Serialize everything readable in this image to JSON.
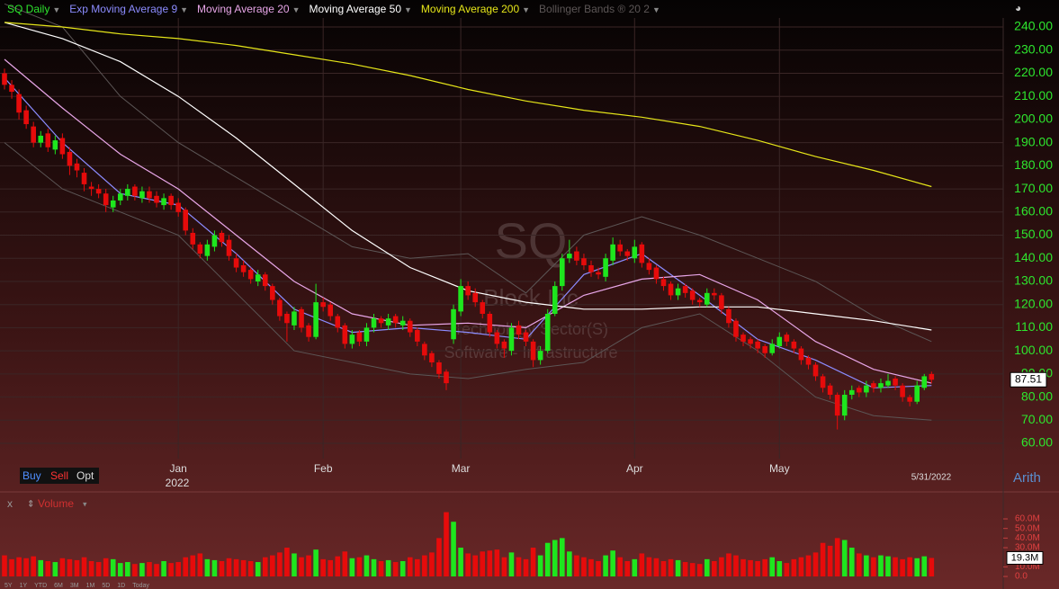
{
  "chart_data": {
    "type": "candlestick",
    "title": "SQ Daily",
    "up_color": "#1ee61e",
    "down_color": "#e60b0b",
    "xlim": [
      -0.62,
      137.9
    ],
    "ylim": [
      53.4,
      243.9
    ],
    "yticks": [
      {
        "value": 240,
        "label": "240.00"
      },
      {
        "value": 230,
        "label": "230.00"
      },
      {
        "value": 220,
        "label": "220.00"
      },
      {
        "value": 210,
        "label": "210.00"
      },
      {
        "value": 200,
        "label": "200.00"
      },
      {
        "value": 190,
        "label": "190.00"
      },
      {
        "value": 180,
        "label": "180.00"
      },
      {
        "value": 170,
        "label": "170.00"
      },
      {
        "value": 160,
        "label": "160.00"
      },
      {
        "value": 150,
        "label": "150.00"
      },
      {
        "value": 140,
        "label": "140.00"
      },
      {
        "value": 130,
        "label": "130.00"
      },
      {
        "value": 120,
        "label": "120.00"
      },
      {
        "value": 110,
        "label": "110.00"
      },
      {
        "value": 100,
        "label": "100.00"
      },
      {
        "value": 90,
        "label": "90.00"
      },
      {
        "value": 80,
        "label": "80.00"
      },
      {
        "value": 70,
        "label": "70.00"
      },
      {
        "value": 60,
        "label": "60.00"
      }
    ],
    "grid": true,
    "x_labels": [
      {
        "index": 24,
        "label": "Jan"
      },
      {
        "index": 44,
        "label": "Feb"
      },
      {
        "index": 63,
        "label": "Mar"
      },
      {
        "index": 87,
        "label": "Apr"
      },
      {
        "index": 107,
        "label": "May"
      }
    ],
    "year_label": "2022",
    "end_date_label": "5/31/2022",
    "candles": [
      [
        220,
        222,
        213,
        215
      ],
      [
        215,
        217,
        209,
        212
      ],
      [
        211,
        213,
        200,
        203
      ],
      [
        204,
        206,
        196,
        198
      ],
      [
        197,
        199,
        188,
        190
      ],
      [
        190,
        195,
        188,
        193
      ],
      [
        194,
        196,
        186,
        188
      ],
      [
        187,
        193,
        185,
        191
      ],
      [
        192,
        194,
        183,
        185
      ],
      [
        186,
        188,
        176,
        180
      ],
      [
        181,
        183,
        175,
        178
      ],
      [
        177,
        179,
        169,
        172
      ],
      [
        171,
        173,
        167,
        170
      ],
      [
        170,
        172,
        166,
        168
      ],
      [
        168,
        170,
        160,
        163
      ],
      [
        162,
        167,
        160,
        165
      ],
      [
        165,
        170,
        163,
        168
      ],
      [
        167,
        172,
        165,
        170
      ],
      [
        171,
        172,
        165,
        167
      ],
      [
        166,
        171,
        164,
        169
      ],
      [
        169,
        171,
        164,
        166
      ],
      [
        167,
        169,
        162,
        164
      ],
      [
        163,
        168,
        161,
        166
      ],
      [
        167,
        168,
        161,
        163
      ],
      [
        164,
        166,
        158,
        160
      ],
      [
        161,
        162,
        150,
        152
      ],
      [
        151,
        153,
        144,
        146
      ],
      [
        146,
        147,
        140,
        142
      ],
      [
        141,
        148,
        139,
        146
      ],
      [
        145,
        152,
        143,
        150
      ],
      [
        151,
        152,
        145,
        147
      ],
      [
        148,
        150,
        139,
        141
      ],
      [
        140,
        142,
        134,
        136
      ],
      [
        137,
        139,
        132,
        134
      ],
      [
        135,
        136,
        129,
        131
      ],
      [
        130,
        135,
        128,
        133
      ],
      [
        133,
        134,
        126,
        128
      ],
      [
        128,
        129,
        120,
        122
      ],
      [
        122,
        123,
        113,
        115
      ],
      [
        116,
        117,
        104,
        112
      ],
      [
        111,
        119,
        109,
        117
      ],
      [
        118,
        119,
        108,
        110
      ],
      [
        111,
        112,
        104,
        106
      ],
      [
        106,
        129,
        105,
        121
      ],
      [
        121,
        123,
        117,
        119
      ],
      [
        120,
        121,
        113,
        115
      ],
      [
        115,
        116,
        108,
        110
      ],
      [
        111,
        112,
        101,
        103
      ],
      [
        103,
        109,
        101,
        107
      ],
      [
        108,
        109,
        102,
        104
      ],
      [
        104,
        112,
        102,
        110
      ],
      [
        110,
        116,
        108,
        114
      ],
      [
        114,
        115,
        110,
        112
      ],
      [
        111,
        116,
        109,
        114
      ],
      [
        115,
        116,
        110,
        112
      ],
      [
        111,
        115,
        109,
        113
      ],
      [
        113,
        114,
        106,
        108
      ],
      [
        109,
        110,
        102,
        104
      ],
      [
        103,
        104,
        96,
        98
      ],
      [
        99,
        100,
        93,
        95
      ],
      [
        95,
        96,
        88,
        90
      ],
      [
        91,
        92,
        83,
        86
      ],
      [
        105,
        120,
        103,
        118
      ],
      [
        117,
        131,
        115,
        128
      ],
      [
        128,
        130,
        122,
        124
      ],
      [
        125,
        127,
        119,
        121
      ],
      [
        121,
        122,
        114,
        116
      ],
      [
        116,
        117,
        106,
        108
      ],
      [
        108,
        109,
        101,
        103
      ],
      [
        104,
        105,
        97,
        101
      ],
      [
        100,
        112,
        98,
        110
      ],
      [
        111,
        113,
        105,
        107
      ],
      [
        108,
        109,
        102,
        104
      ],
      [
        104,
        105,
        93,
        96
      ],
      [
        96,
        102,
        94,
        100
      ],
      [
        100,
        118,
        99,
        116
      ],
      [
        116,
        130,
        115,
        128
      ],
      [
        128,
        142,
        126,
        140
      ],
      [
        140,
        148,
        138,
        142
      ],
      [
        143,
        145,
        137,
        139
      ],
      [
        140,
        142,
        135,
        137
      ],
      [
        137,
        139,
        132,
        134
      ],
      [
        134,
        136,
        131,
        133
      ],
      [
        132,
        142,
        130,
        140
      ],
      [
        139,
        149,
        137,
        146
      ],
      [
        146,
        148,
        141,
        143
      ],
      [
        143,
        144,
        139,
        141
      ],
      [
        140,
        148,
        138,
        145
      ],
      [
        146,
        147,
        136,
        138
      ],
      [
        138,
        140,
        133,
        135
      ],
      [
        136,
        137,
        129,
        131
      ],
      [
        131,
        132,
        126,
        128
      ],
      [
        129,
        130,
        122,
        124
      ],
      [
        124,
        129,
        122,
        127
      ],
      [
        128,
        129,
        123,
        125
      ],
      [
        126,
        127,
        120,
        122
      ],
      [
        122,
        123,
        119,
        121
      ],
      [
        120,
        127,
        119,
        125
      ],
      [
        125,
        127,
        122,
        124
      ],
      [
        124,
        125,
        116,
        118
      ],
      [
        118,
        119,
        110,
        112
      ],
      [
        113,
        114,
        104,
        106
      ],
      [
        107,
        108,
        102,
        104
      ],
      [
        105,
        106,
        101,
        103
      ],
      [
        104,
        105,
        99,
        101
      ],
      [
        102,
        103,
        97,
        99
      ],
      [
        99,
        105,
        98,
        103
      ],
      [
        102,
        108,
        101,
        106
      ],
      [
        107,
        108,
        102,
        104
      ],
      [
        104,
        105,
        99,
        101
      ],
      [
        101,
        102,
        94,
        96
      ],
      [
        97,
        98,
        92,
        94
      ],
      [
        94,
        95,
        87,
        89
      ],
      [
        89,
        90,
        82,
        84
      ],
      [
        85,
        86,
        79,
        81
      ],
      [
        81,
        82,
        66,
        72
      ],
      [
        72,
        83,
        70,
        81
      ],
      [
        81,
        85,
        79,
        83
      ],
      [
        84,
        85,
        80,
        82
      ],
      [
        82,
        87,
        80,
        85
      ],
      [
        86,
        87,
        82,
        84
      ],
      [
        84,
        88,
        82,
        86
      ],
      [
        85,
        90,
        84,
        87
      ],
      [
        88,
        89,
        83,
        85
      ],
      [
        85,
        86,
        78,
        80
      ],
      [
        80,
        81,
        76,
        78
      ],
      [
        78,
        87,
        77,
        85
      ],
      [
        84,
        90,
        83,
        89
      ],
      [
        90,
        91,
        86,
        87.51
      ]
    ],
    "ma_x": [
      0,
      8,
      16,
      24,
      32,
      40,
      48,
      56,
      64,
      72,
      80,
      88,
      96,
      104,
      112,
      120,
      128
    ],
    "series": [
      {
        "name": "Exp Moving Average 9",
        "color": "#8c8cff",
        "values": [
          218,
          190,
          168,
          163,
          142,
          118,
          108,
          110,
          108,
          105,
          133,
          142,
          124,
          105,
          96,
          84,
          85
        ]
      },
      {
        "name": "Moving Average 20",
        "color": "#e8a6e8",
        "values": [
          226,
          205,
          185,
          170,
          150,
          130,
          116,
          111,
          112,
          110,
          124,
          131,
          133,
          122,
          104,
          92,
          86
        ]
      },
      {
        "name": "Moving Average 50",
        "color": "#ffffff",
        "values": [
          242,
          235,
          225,
          210,
          192,
          172,
          152,
          136,
          126,
          121,
          118,
          118,
          119,
          119,
          116,
          113,
          109
        ]
      },
      {
        "name": "Moving Average 200",
        "color": "#e6e619",
        "values": [
          242,
          240,
          237,
          235,
          232,
          228,
          224,
          219,
          213,
          208,
          204,
          201,
          197,
          191,
          184,
          178,
          171
        ]
      }
    ],
    "bollinger": {
      "name": "Bollinger Bands ® 20 2",
      "color": "#5c5656",
      "upper": [
        250,
        240,
        210,
        190,
        175,
        160,
        145,
        140,
        142,
        125,
        150,
        158,
        150,
        140,
        130,
        115,
        104
      ],
      "lower": [
        190,
        170,
        160,
        150,
        125,
        100,
        95,
        90,
        88,
        92,
        95,
        110,
        116,
        100,
        80,
        72,
        70
      ]
    },
    "volume": {
      "title": "Volume",
      "ylim": [
        -3.7,
        69.4
      ],
      "yticks": [
        {
          "value": 60,
          "label": "60.0M"
        },
        {
          "value": 50,
          "label": "50.0M"
        },
        {
          "value": 40,
          "label": "40.0M"
        },
        {
          "value": 30,
          "label": "30.0M"
        },
        {
          "value": 10,
          "label": "10.0M"
        },
        {
          "value": 0,
          "label": "0.0"
        }
      ],
      "values": [
        22,
        18,
        20,
        19,
        21,
        17,
        16,
        15,
        19,
        18,
        17,
        20,
        16,
        15,
        19,
        18,
        14,
        15,
        13,
        14,
        15,
        13,
        16,
        14,
        15,
        20,
        22,
        24,
        18,
        17,
        16,
        19,
        18,
        17,
        16,
        15,
        20,
        22,
        25,
        30,
        24,
        20,
        22,
        28,
        18,
        17,
        21,
        26,
        19,
        20,
        22,
        18,
        16,
        17,
        15,
        16,
        20,
        18,
        22,
        25,
        40,
        67,
        57,
        30,
        24,
        22,
        26,
        27,
        28,
        20,
        25,
        20,
        18,
        30,
        22,
        35,
        38,
        40,
        26,
        22,
        20,
        18,
        16,
        22,
        27,
        20,
        16,
        18,
        24,
        20,
        19,
        16,
        18,
        17,
        15,
        14,
        13,
        18,
        16,
        20,
        24,
        22,
        18,
        17,
        16,
        18,
        20,
        16,
        14,
        18,
        20,
        22,
        25,
        35,
        32,
        40,
        38,
        30,
        24,
        22,
        20,
        22,
        21,
        20,
        18,
        20,
        19,
        21,
        19.3
      ],
      "value_label": "19.3M"
    }
  },
  "watermark": {
    "symbol": "SQ",
    "company": "Block Inc",
    "sector": "Technology Sector(S)",
    "industry": "Software - Infrastructure"
  },
  "toolbar": {
    "buy": "Buy",
    "sell": "Sell",
    "opt": "Opt",
    "close": "x",
    "scale": "Arith",
    "timeframes": [
      "5Y",
      "1Y",
      "YTD",
      "6M",
      "3M",
      "1M",
      "5D",
      "1D",
      "Today"
    ]
  }
}
